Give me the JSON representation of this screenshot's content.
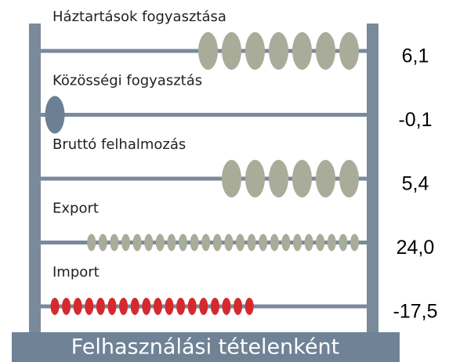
{
  "chart_data": {
    "type": "abacus",
    "categories": [
      "Háztartások fogyasztása",
      "Közösségi fogyasztás",
      "Bruttó felhalmozás",
      "Export",
      "Import"
    ],
    "values": [
      6.1,
      -0.1,
      5.4,
      24.0,
      -17.5
    ],
    "value_labels": [
      "6,1",
      "-0,1",
      "5,4",
      "24,0",
      "-17,5"
    ],
    "colors": [
      "#a9ac99",
      "#6d7f93",
      "#a9ac99",
      "#a9ac99",
      "#d42a2e"
    ],
    "xlabel": "Felhasználási tételenként"
  }
}
